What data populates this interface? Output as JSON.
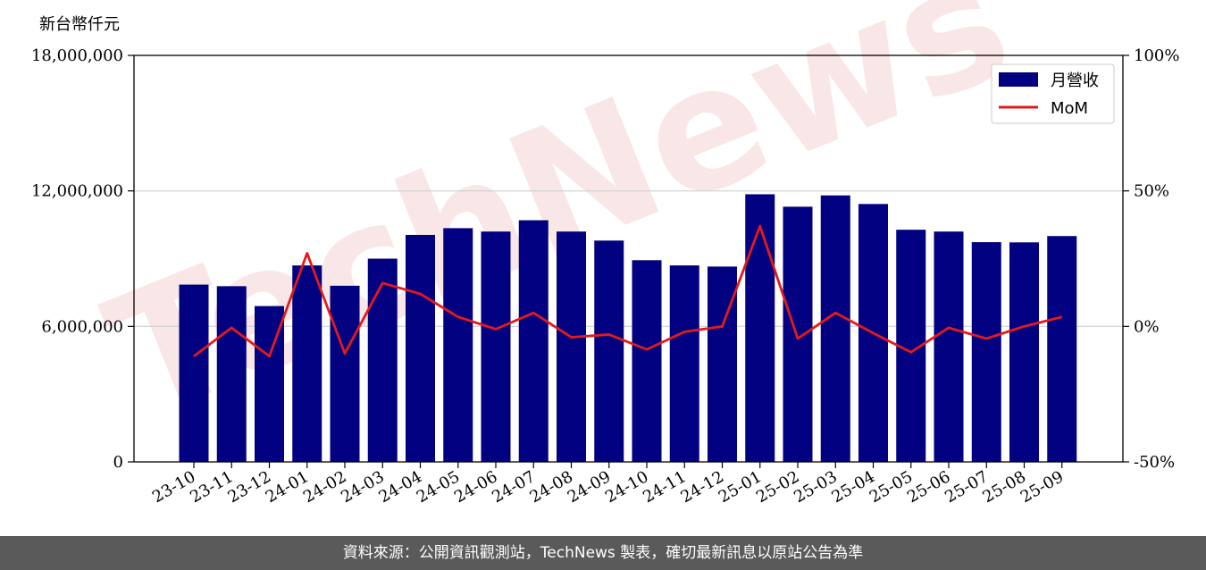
{
  "watermark": "TechNews",
  "footer": {
    "text": "資料來源：公開資訊觀測站，TechNews 製表，確切最新訊息以原站公告為準"
  },
  "colors": {
    "bar": "#000080",
    "line": "#e31a1c",
    "grid": "#cfcfcf",
    "footer_bg": "#5a5a5a"
  },
  "chart_data": {
    "type": "bar",
    "unit_label": "新台幣仟元",
    "categories": [
      "23-10",
      "23-11",
      "23-12",
      "24-01",
      "24-02",
      "24-03",
      "24-04",
      "24-05",
      "24-06",
      "24-07",
      "24-08",
      "24-09",
      "24-10",
      "24-11",
      "24-12",
      "25-01",
      "25-02",
      "25-03",
      "25-04",
      "25-05",
      "25-06",
      "25-07",
      "25-08",
      "25-09"
    ],
    "series": [
      {
        "name": "月營收",
        "type": "bar",
        "axis": "left",
        "values": [
          7850000,
          7780000,
          6900000,
          8700000,
          7800000,
          9000000,
          10050000,
          10350000,
          10200000,
          10700000,
          10200000,
          9800000,
          8930000,
          8700000,
          8650000,
          11850000,
          11300000,
          11800000,
          11420000,
          10280000,
          10200000,
          9730000,
          9720000,
          10000000
        ]
      },
      {
        "name": "MoM",
        "type": "line",
        "axis": "right",
        "values": [
          -11,
          -0.5,
          -11,
          27,
          -10,
          16,
          12,
          3.5,
          -1,
          5,
          -4,
          -3,
          -8.5,
          -2,
          0,
          37,
          -4.5,
          5,
          -2.5,
          -9.5,
          -0.5,
          -4.5,
          0,
          3.5
        ]
      }
    ],
    "ylim": [
      0,
      18000000
    ],
    "yticks": [
      0,
      6000000,
      12000000,
      18000000
    ],
    "ytick_labels": [
      "0",
      "6,000,000",
      "12,000,000",
      "18,000,000"
    ],
    "y2lim": [
      -50,
      100
    ],
    "y2ticks": [
      -50,
      0,
      50,
      100
    ],
    "y2tick_labels": [
      "-50%",
      "0%",
      "50%",
      "100%"
    ],
    "grid": "horizontal",
    "legend_position": "top-right"
  }
}
